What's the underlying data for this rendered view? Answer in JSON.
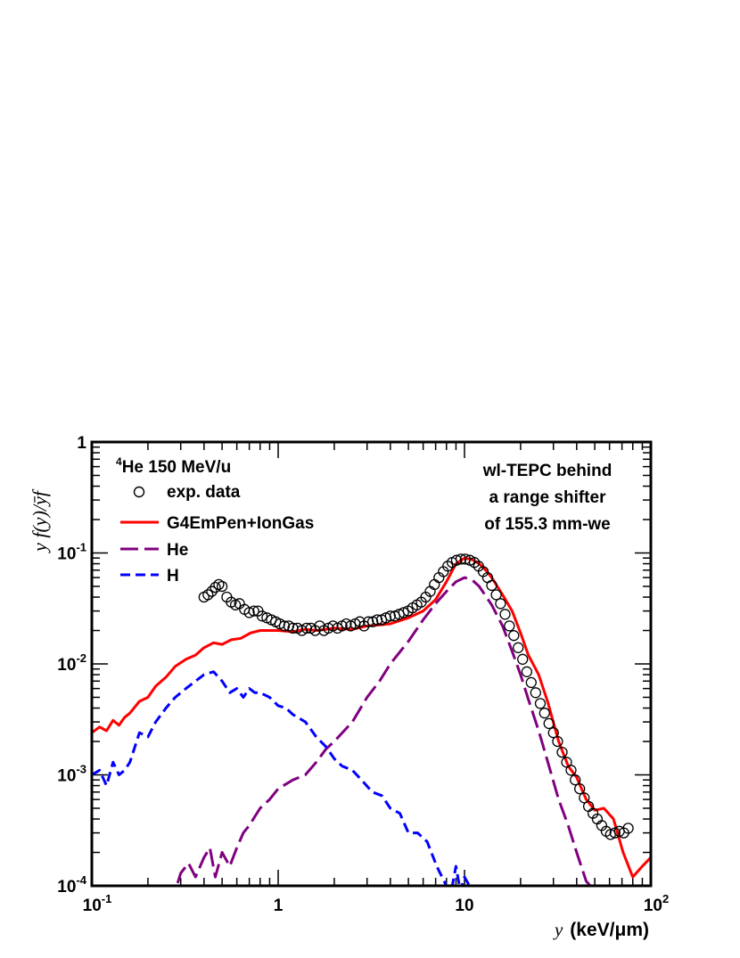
{
  "chart_data": {
    "type": "line",
    "x_scale": "log",
    "y_scale": "log",
    "xlim": [
      0.1,
      100
    ],
    "ylim": [
      0.0001,
      1
    ],
    "x_ticks": [
      {
        "value": 0.1,
        "label": "10",
        "sup": "-1"
      },
      {
        "value": 1,
        "label": "1",
        "sup": ""
      },
      {
        "value": 10,
        "label": "10",
        "sup": ""
      },
      {
        "value": 100,
        "label": "10",
        "sup": "2"
      }
    ],
    "y_ticks": [
      {
        "value": 1,
        "label": "1",
        "sup": ""
      },
      {
        "value": 0.1,
        "label": "10",
        "sup": "-1"
      },
      {
        "value": 0.01,
        "label": "10",
        "sup": "-2"
      },
      {
        "value": 0.001,
        "label": "10",
        "sup": "-3"
      },
      {
        "value": 0.0001,
        "label": "10",
        "sup": "-4"
      }
    ],
    "xlabel": {
      "var": "y",
      "unit": "(keV/μm)"
    },
    "ylabel": "y f(y)/ȳf",
    "legend": {
      "position": "top-left",
      "title_sup": "4",
      "title": "He 150 MeV/u",
      "items": [
        "exp. data",
        "G4EmPen+IonGas",
        "He",
        "H"
      ]
    },
    "annotation": [
      "wl-TEPC behind",
      "a range shifter",
      "of 155.3 mm-we"
    ],
    "series": [
      {
        "name": "exp. data",
        "style": "markers",
        "color": "#000000",
        "x": [
          0.4,
          0.42,
          0.44,
          0.46,
          0.48,
          0.5,
          0.53,
          0.56,
          0.59,
          0.62,
          0.66,
          0.7,
          0.74,
          0.78,
          0.82,
          0.87,
          0.92,
          0.97,
          1.02,
          1.08,
          1.14,
          1.2,
          1.27,
          1.34,
          1.42,
          1.5,
          1.58,
          1.67,
          1.76,
          1.86,
          1.97,
          2.08,
          2.2,
          2.32,
          2.45,
          2.59,
          2.74,
          2.89,
          3.05,
          3.22,
          3.4,
          3.59,
          3.79,
          4.0,
          4.23,
          4.46,
          4.71,
          4.98,
          5.26,
          5.55,
          5.86,
          6.19,
          6.54,
          6.9,
          7.29,
          7.7,
          8.13,
          8.58,
          9.06,
          9.57,
          10.1,
          10.7,
          11.3,
          11.9,
          12.6,
          13.3,
          14.0,
          14.8,
          15.6,
          16.5,
          17.4,
          18.4,
          19.4,
          20.5,
          21.6,
          22.8,
          24.1,
          25.5,
          26.9,
          28.4,
          30.0,
          31.6,
          33.4,
          35.3,
          37.3,
          39.3,
          41.5,
          43.9,
          46.3,
          48.9,
          51.6,
          54.5,
          57.6,
          60.8,
          64.2,
          67.8,
          71.6,
          75.6
        ],
        "y": [
          0.04,
          0.042,
          0.045,
          0.049,
          0.052,
          0.05,
          0.04,
          0.036,
          0.034,
          0.035,
          0.031,
          0.029,
          0.03,
          0.03,
          0.027,
          0.026,
          0.025,
          0.024,
          0.023,
          0.022,
          0.022,
          0.021,
          0.021,
          0.02,
          0.021,
          0.021,
          0.02,
          0.022,
          0.02,
          0.021,
          0.022,
          0.021,
          0.022,
          0.023,
          0.022,
          0.023,
          0.024,
          0.022,
          0.024,
          0.024,
          0.025,
          0.025,
          0.026,
          0.027,
          0.027,
          0.028,
          0.029,
          0.03,
          0.032,
          0.034,
          0.036,
          0.04,
          0.045,
          0.052,
          0.06,
          0.068,
          0.076,
          0.082,
          0.086,
          0.088,
          0.088,
          0.086,
          0.082,
          0.076,
          0.068,
          0.06,
          0.051,
          0.042,
          0.035,
          0.028,
          0.022,
          0.018,
          0.014,
          0.011,
          0.0085,
          0.0068,
          0.0055,
          0.0044,
          0.0036,
          0.0029,
          0.0024,
          0.002,
          0.0016,
          0.0013,
          0.0011,
          0.0009,
          0.00075,
          0.00062,
          0.00052,
          0.00045,
          0.0004,
          0.00035,
          0.00031,
          0.00029,
          0.0003,
          0.00031,
          0.0003,
          0.00033
        ]
      },
      {
        "name": "G4EmPen+IonGas",
        "style": "solid",
        "color": "#ff0000",
        "x": [
          0.1,
          0.11,
          0.12,
          0.13,
          0.14,
          0.15,
          0.16,
          0.18,
          0.2,
          0.22,
          0.25,
          0.28,
          0.32,
          0.36,
          0.4,
          0.45,
          0.5,
          0.56,
          0.63,
          0.71,
          0.8,
          0.9,
          1.0,
          1.2,
          1.4,
          1.6,
          1.8,
          2.0,
          2.5,
          3.0,
          3.5,
          4.0,
          5.0,
          6.0,
          7.0,
          8.0,
          9.0,
          10.0,
          11.0,
          12.0,
          13.0,
          14.0,
          16.0,
          18.0,
          20.0,
          22.0,
          25.0,
          28.0,
          32.0,
          36.0,
          40.0,
          45.0,
          50.0,
          56.0,
          63.0,
          71.0,
          80.0,
          90.0,
          100.0
        ],
        "y": [
          0.0024,
          0.0027,
          0.0025,
          0.0031,
          0.0028,
          0.0033,
          0.0036,
          0.0046,
          0.005,
          0.0063,
          0.0076,
          0.0095,
          0.011,
          0.012,
          0.014,
          0.0155,
          0.015,
          0.0165,
          0.017,
          0.019,
          0.02,
          0.02,
          0.02,
          0.0195,
          0.0205,
          0.02,
          0.0205,
          0.021,
          0.0205,
          0.022,
          0.0225,
          0.023,
          0.026,
          0.03,
          0.038,
          0.055,
          0.08,
          0.09,
          0.087,
          0.08,
          0.07,
          0.06,
          0.042,
          0.03,
          0.019,
          0.012,
          0.008,
          0.0045,
          0.002,
          0.0012,
          0.00095,
          0.0006,
          0.00048,
          0.0005,
          0.0004,
          0.0002,
          0.00012,
          0.00015,
          0.00018
        ]
      },
      {
        "name": "He",
        "style": "long-dash",
        "color": "#800080",
        "x": [
          0.1,
          0.12,
          0.14,
          0.16,
          0.18,
          0.2,
          0.22,
          0.25,
          0.28,
          0.3,
          0.33,
          0.36,
          0.4,
          0.43,
          0.46,
          0.5,
          0.55,
          0.6,
          0.65,
          0.7,
          0.8,
          0.9,
          1.0,
          1.2,
          1.4,
          1.6,
          1.8,
          2.0,
          2.5,
          3.0,
          3.5,
          4.0,
          5.0,
          6.0,
          7.0,
          8.0,
          9.0,
          10.0,
          11.0,
          12.0,
          14.0,
          16.0,
          18.0,
          20.0,
          22.0,
          25.0,
          28.0,
          32.0,
          36.0,
          40.0,
          45.0,
          50.0
        ],
        "y": [
          9e-05,
          9e-05,
          0.0001,
          9e-05,
          9e-05,
          0.0001,
          0.0001,
          9e-05,
          9e-05,
          0.00013,
          0.00016,
          0.00012,
          0.00018,
          0.00022,
          0.00012,
          0.0002,
          0.00015,
          0.00022,
          0.0003,
          0.00035,
          0.0005,
          0.0006,
          0.00075,
          0.0009,
          0.001,
          0.0013,
          0.0017,
          0.002,
          0.003,
          0.005,
          0.007,
          0.01,
          0.016,
          0.025,
          0.035,
          0.045,
          0.055,
          0.06,
          0.057,
          0.05,
          0.034,
          0.022,
          0.013,
          0.008,
          0.0048,
          0.0025,
          0.0013,
          0.0006,
          0.00035,
          0.0002,
          0.00011,
          9e-05
        ]
      },
      {
        "name": "H",
        "style": "short-dash",
        "color": "#0000ff",
        "x": [
          0.1,
          0.11,
          0.12,
          0.13,
          0.14,
          0.15,
          0.16,
          0.18,
          0.2,
          0.22,
          0.25,
          0.28,
          0.32,
          0.36,
          0.4,
          0.45,
          0.5,
          0.55,
          0.6,
          0.65,
          0.7,
          0.75,
          0.8,
          0.9,
          1.0,
          1.1,
          1.2,
          1.4,
          1.6,
          1.8,
          2.0,
          2.2,
          2.5,
          2.8,
          3.2,
          3.6,
          4.0,
          4.5,
          5.0,
          5.6,
          6.3,
          7.1,
          8.0,
          8.5,
          9.0,
          9.5,
          10.0,
          11.0,
          12.0,
          14.0,
          16.0,
          18.0
        ],
        "y": [
          0.001,
          0.0011,
          0.0008,
          0.0013,
          0.001,
          0.0011,
          0.0013,
          0.0024,
          0.0022,
          0.003,
          0.004,
          0.005,
          0.006,
          0.007,
          0.008,
          0.0085,
          0.007,
          0.0055,
          0.006,
          0.005,
          0.006,
          0.0055,
          0.0055,
          0.005,
          0.0042,
          0.004,
          0.0035,
          0.003,
          0.0022,
          0.0018,
          0.0014,
          0.0012,
          0.0011,
          0.0009,
          0.0007,
          0.00065,
          0.0005,
          0.00045,
          0.0003,
          0.0003,
          0.00025,
          0.00015,
          0.0001,
          9e-05,
          0.00015,
          9e-05,
          0.00012,
          9e-05,
          9e-05,
          9e-05,
          0.0001,
          9e-05
        ]
      }
    ]
  }
}
